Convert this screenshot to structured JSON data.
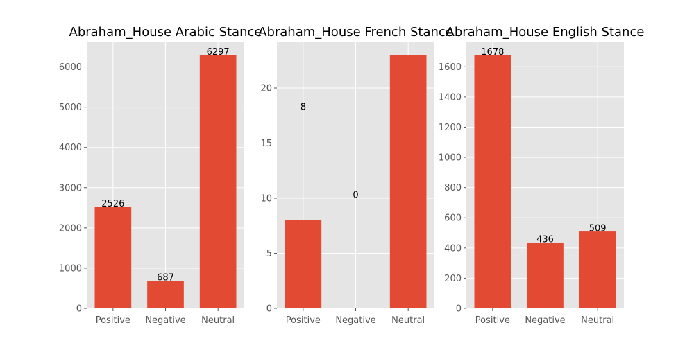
{
  "colors": {
    "bar": "#e24a33",
    "plot_background": "#e5e5e5",
    "grid": "#ffffff"
  },
  "chart_data": [
    {
      "type": "bar",
      "title": "Abraham_House Arabic Stance",
      "categories": [
        "Positive",
        "Negative",
        "Neutral"
      ],
      "values": [
        2526,
        687,
        6297
      ],
      "ylim": [
        0,
        6612
      ],
      "yticks": [
        0,
        1000,
        2000,
        3000,
        4000,
        5000,
        6000
      ],
      "grid": true,
      "data_labels": [
        {
          "text": "2526",
          "y": 2526
        },
        {
          "text": "687",
          "y": 687
        },
        {
          "text": "6297",
          "y": 6297
        }
      ]
    },
    {
      "type": "bar",
      "title": "Abraham_House French Stance",
      "categories": [
        "Positive",
        "Negative",
        "Neutral"
      ],
      "values": [
        8,
        0,
        23
      ],
      "ylim": [
        0,
        24.15
      ],
      "yticks": [
        0,
        5,
        10,
        15,
        20
      ],
      "grid": true,
      "data_labels": [
        {
          "text": "8",
          "y": 18
        },
        {
          "text": "0",
          "y": 10
        }
      ]
    },
    {
      "type": "bar",
      "title": "Abraham_House English Stance",
      "categories": [
        "Positive",
        "Negative",
        "Neutral"
      ],
      "values": [
        1678,
        436,
        509
      ],
      "ylim": [
        0,
        1762
      ],
      "yticks": [
        0,
        200,
        400,
        600,
        800,
        1000,
        1200,
        1400,
        1600
      ],
      "grid": true,
      "data_labels": [
        {
          "text": "1678",
          "y": 1678
        },
        {
          "text": "436",
          "y": 436
        },
        {
          "text": "509",
          "y": 509
        }
      ]
    }
  ]
}
